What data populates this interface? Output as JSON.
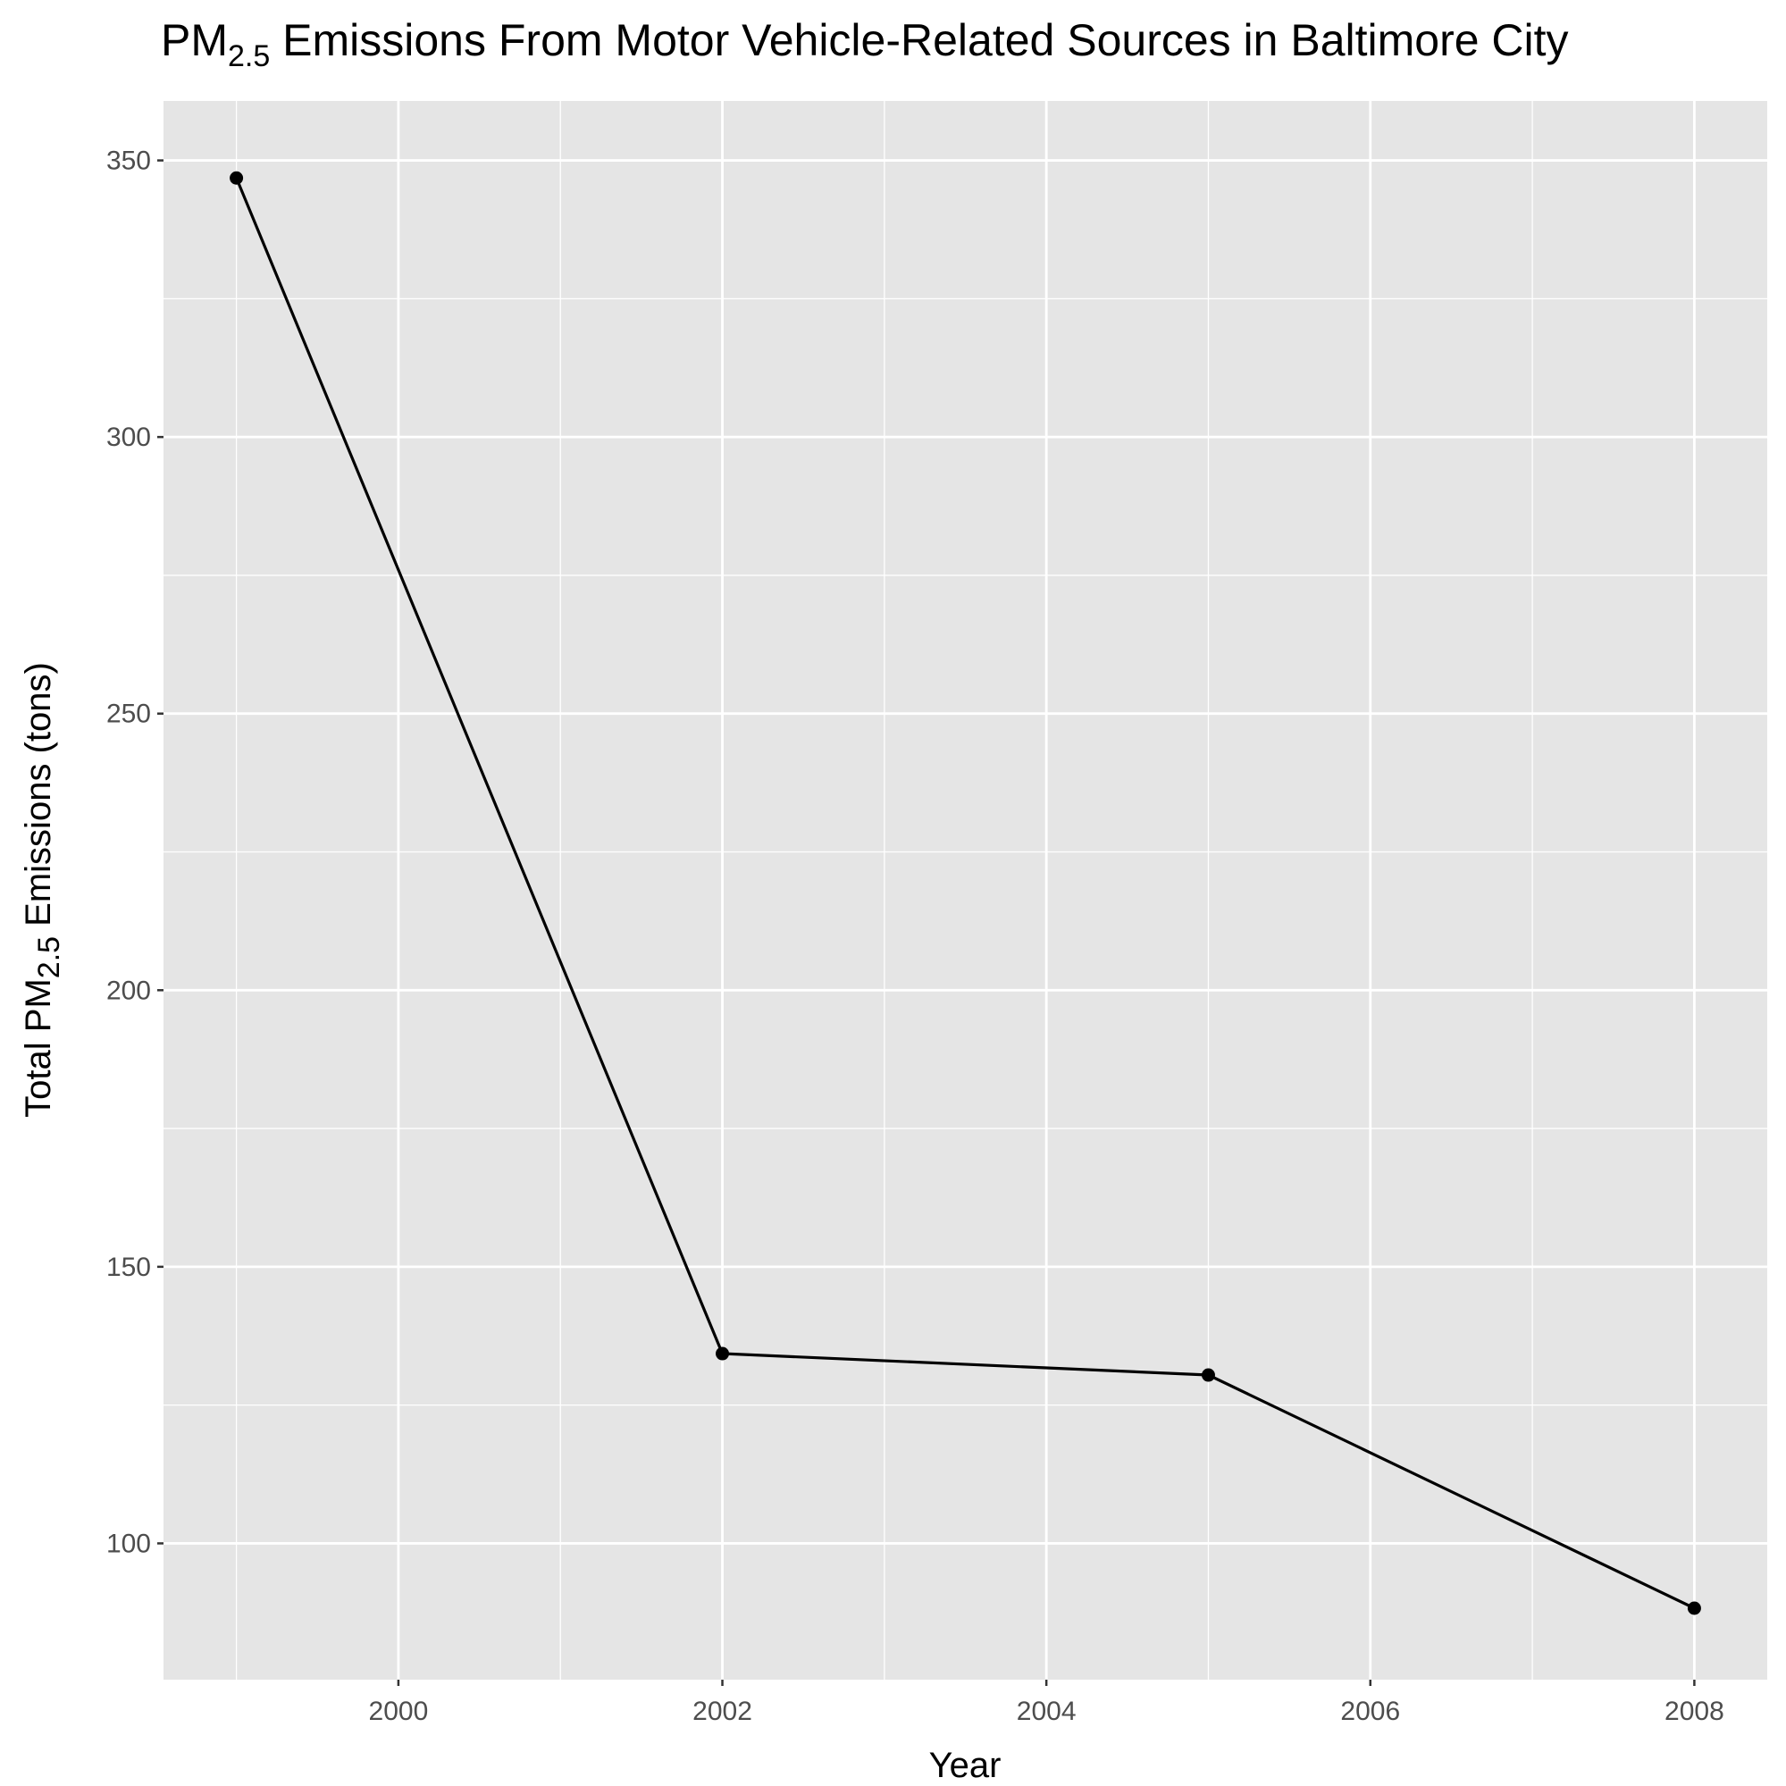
{
  "title": {
    "prefix": "PM",
    "subscript": "2.5",
    "suffix": " Emissions From Motor Vehicle-Related Sources in Baltimore City"
  },
  "ylabel": {
    "prefix": "Total PM",
    "subscript": "2.5",
    "suffix": " Emissions (tons)"
  },
  "xlabel": "Year",
  "chart_data": {
    "type": "line",
    "title": "PM2.5 Emissions From Motor Vehicle-Related Sources in Baltimore City",
    "xlabel": "Year",
    "ylabel": "Total PM2.5 Emissions (tons)",
    "x": [
      1999,
      2002,
      2005,
      2008
    ],
    "series": [
      {
        "values": [
          346.82,
          134.31,
          130.43,
          88.28
        ]
      }
    ],
    "xlim": [
      1998.55,
      2008.45
    ],
    "ylim": [
      75.36,
      360.75
    ],
    "xticks": [
      2000,
      2002,
      2004,
      2006,
      2008
    ],
    "yticks": [
      100,
      150,
      200,
      250,
      300,
      350
    ],
    "xticks_minor": [
      1999,
      2001,
      2003,
      2005,
      2007
    ],
    "yticks_minor": [
      125,
      175,
      225,
      275,
      325
    ],
    "grid": true,
    "legend": "none",
    "colors": {
      "panel_background": "#E5E5E5",
      "grid": "#FFFFFF",
      "line": "#000000",
      "point": "#000000",
      "tick_label": "#4D4D4D",
      "tick_mark": "#333333"
    }
  }
}
